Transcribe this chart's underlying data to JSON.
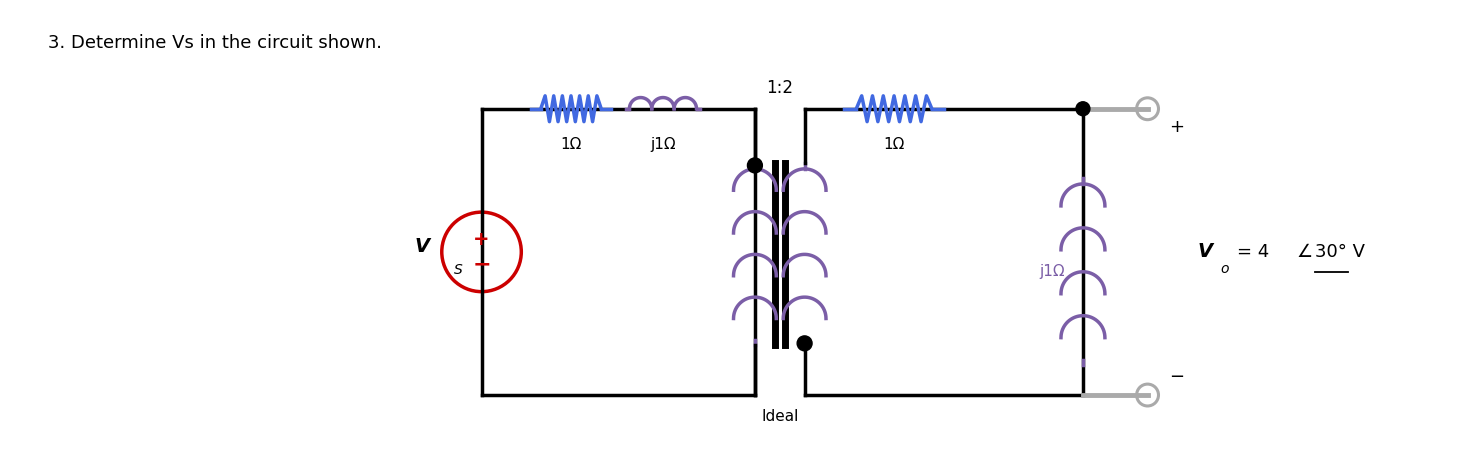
{
  "title": "3. Determine Vs in the circuit shown.",
  "title_fontsize": 13,
  "bg_color": "#ffffff",
  "resistor_color": "#4169e1",
  "inductor_color": "#7b5ea7",
  "wire_color": "#000000",
  "source_color": "#cc0000",
  "terminal_color": "#aaaaaa",
  "label_1ohm_left": "1Ω",
  "label_j1ohm_left": "j1Ω",
  "label_1ohm_right": "1Ω",
  "label_j1ohm_right": "j1Ω",
  "label_ratio": "1:2",
  "label_ideal": "Ideal",
  "label_vs": "V",
  "label_vs_sub": "S",
  "label_vo": "V",
  "label_vo_sub": "o",
  "label_vo_val": "= 4",
  "label_angle": "30",
  "label_deg_v": "° V",
  "label_plus": "+",
  "label_minus": "−"
}
